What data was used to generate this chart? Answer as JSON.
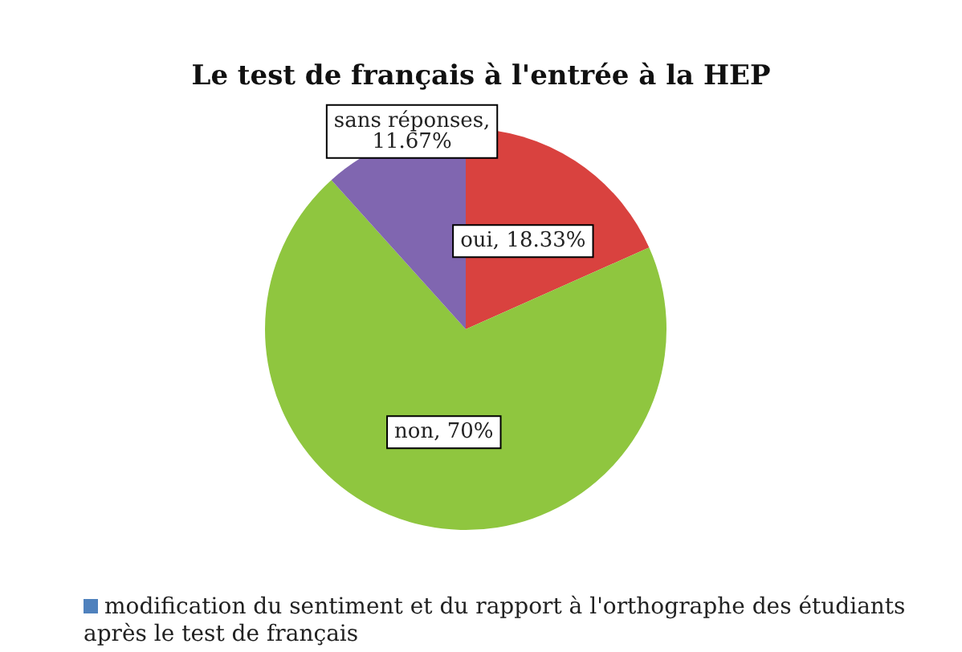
{
  "chart_data": {
    "type": "pie",
    "title": "Le test de français à l'entrée à la HEP",
    "categories": [
      "oui",
      "non",
      "sans réponses"
    ],
    "series": [
      {
        "name": "modification du sentiment et du rapport à l'orthographe des étudiants après le test de français",
        "color": "#4f81bd",
        "values": [
          18.33,
          70,
          11.67
        ],
        "colors": [
          "#d9423f",
          "#8fc63f",
          "#8066b0"
        ],
        "value_labels": [
          ", 18.33%",
          ", 70%",
          ", 11.67%"
        ]
      }
    ],
    "legend": "bottom"
  }
}
